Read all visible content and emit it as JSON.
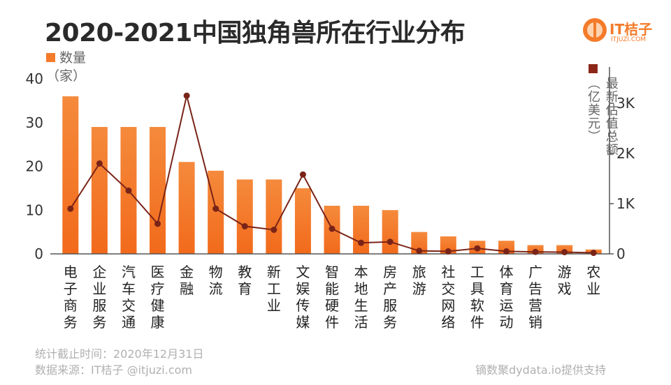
{
  "title": "2020-2021中国独角兽所在行业分布",
  "logo": {
    "name": "IT桔子",
    "url": "ITJUZI.COM"
  },
  "legend_left": {
    "line1": "数量",
    "line2": "（家）"
  },
  "legend_right": {
    "col1": "最新估值总额",
    "col2": "（亿美元）"
  },
  "footer": {
    "stat_date": "统计截止时间：2020年12月31日",
    "source": "数据来源：IT桔子 @itjuzi.com",
    "credit": "镝数聚dydata.io提供支持"
  },
  "colors": {
    "bar": "#f47b2a",
    "line": "#8b2618",
    "axis": "#555555"
  },
  "chart_data": {
    "type": "bar",
    "categories": [
      "电子商务",
      "企业服务",
      "汽车交通",
      "医疗健康",
      "金融",
      "物流",
      "教育",
      "新工业",
      "文娱传媒",
      "智能硬件",
      "本地生活",
      "房产服务",
      "旅游",
      "社交网络",
      "工具软件",
      "体育运动",
      "广告营销",
      "游戏",
      "农业"
    ],
    "series": [
      {
        "name": "数量（家）",
        "type": "bar",
        "axis": "left",
        "values": [
          36,
          29,
          29,
          29,
          21,
          19,
          17,
          17,
          15,
          11,
          11,
          10,
          5,
          4,
          3,
          3,
          2,
          2,
          1
        ]
      },
      {
        "name": "最新估值总额（亿美元）",
        "type": "line",
        "axis": "right",
        "values": [
          900,
          1800,
          1260,
          600,
          3150,
          900,
          550,
          480,
          1580,
          500,
          220,
          240,
          60,
          50,
          110,
          50,
          40,
          35,
          20
        ]
      }
    ],
    "y_left": {
      "range": [
        0,
        40
      ],
      "ticks": [
        "0",
        "10",
        "20",
        "30",
        "40"
      ]
    },
    "y_right": {
      "range": [
        0,
        3500
      ],
      "ticks": [
        "0",
        "1K",
        "2K",
        "3K"
      ]
    }
  }
}
